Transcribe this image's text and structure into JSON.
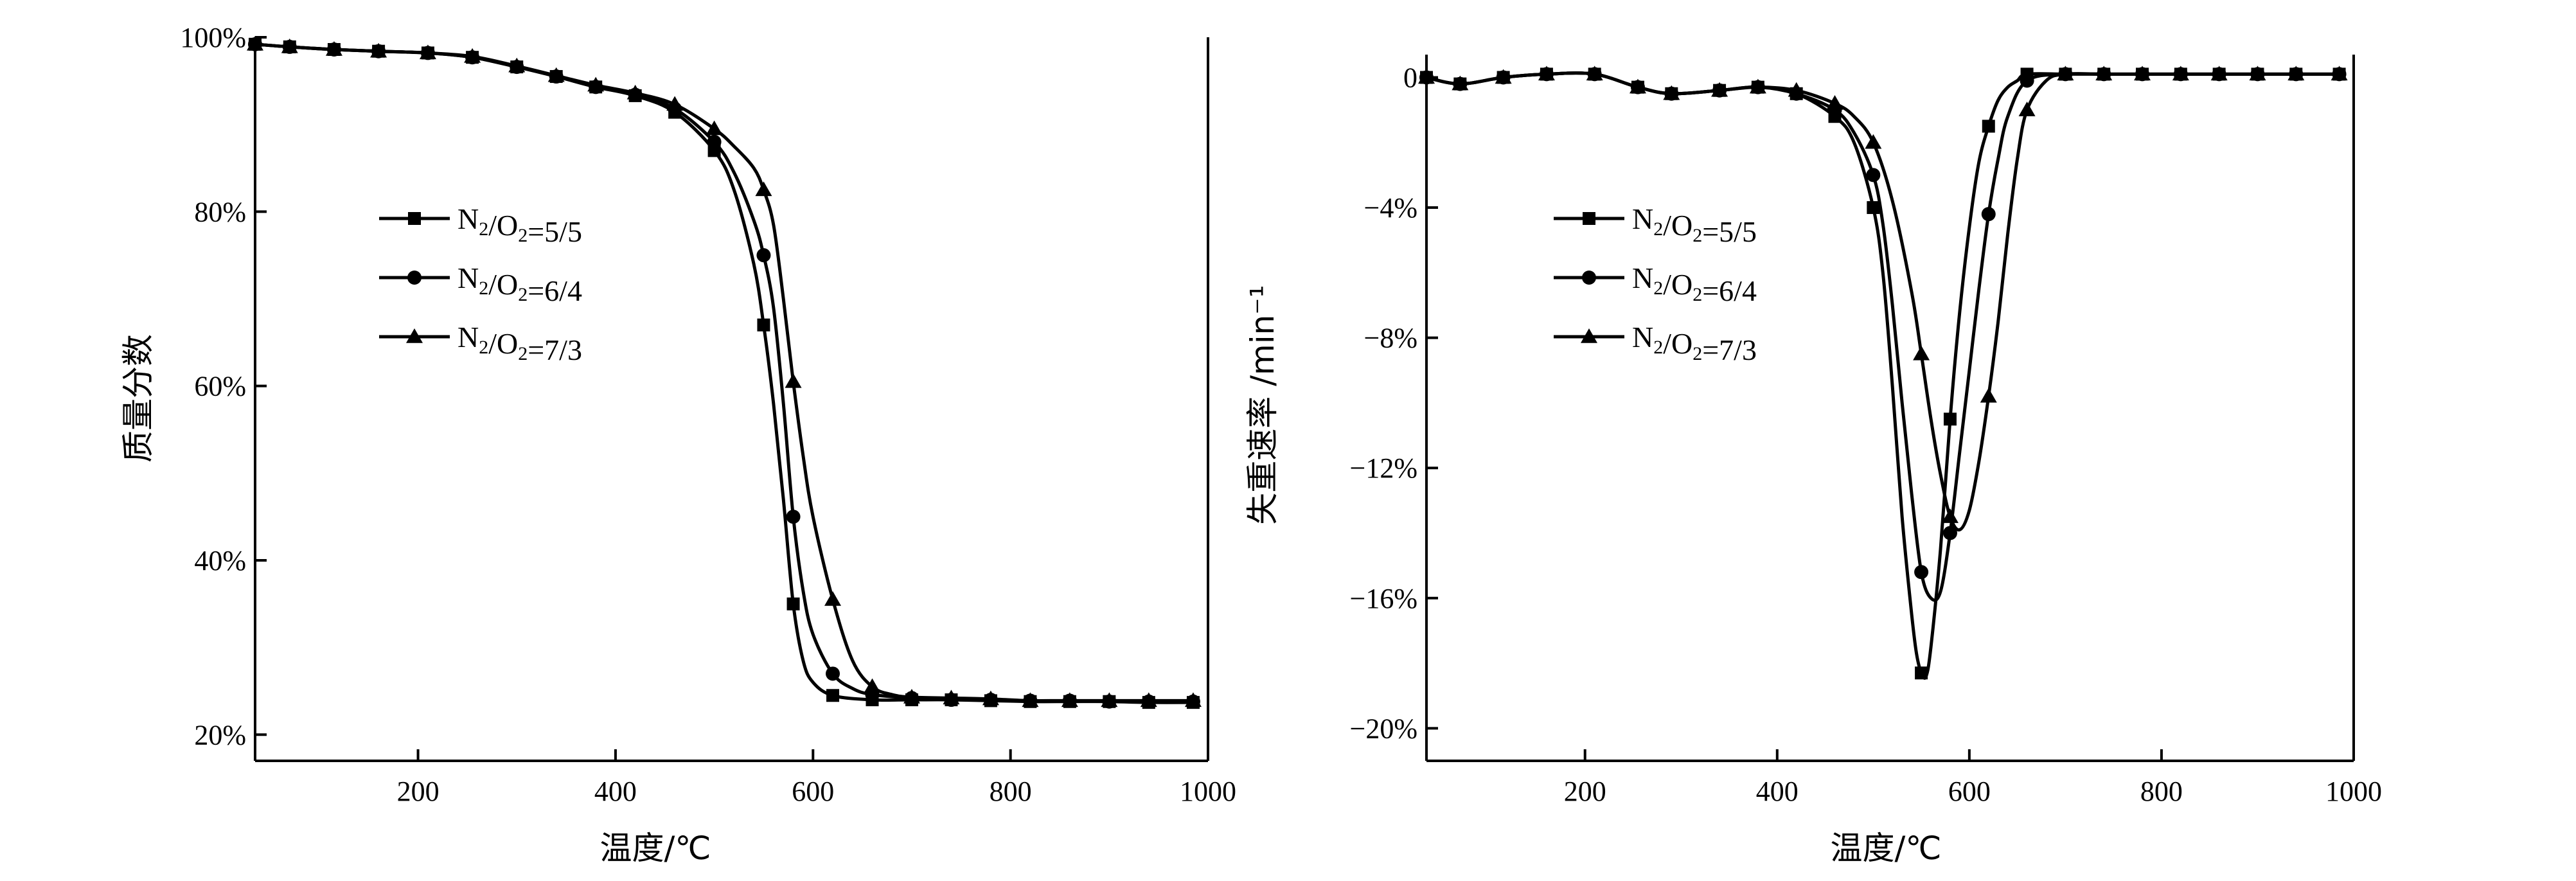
{
  "chart_data": [
    {
      "type": "line",
      "title": "",
      "xlabel": "温度/℃",
      "ylabel": "质量分数",
      "xlim": [
        35,
        1000
      ],
      "ylim": [
        17,
        100
      ],
      "xticks": [
        200,
        400,
        600,
        800,
        1000
      ],
      "xtick_labels": [
        "200",
        "400",
        "600",
        "800",
        "1000"
      ],
      "yticks": [
        20,
        40,
        60,
        80,
        100
      ],
      "ytick_labels": [
        "20%",
        "40%",
        "60%",
        "80%",
        "100%"
      ],
      "legend_position": "center-left",
      "grid": false,
      "series": [
        {
          "name": "N2/O2=5/5",
          "marker": "square",
          "x": [
            35,
            70,
            115,
            160,
            210,
            255,
            300,
            340,
            380,
            420,
            460,
            500,
            520,
            540,
            550,
            560,
            570,
            580,
            590,
            600,
            620,
            660,
            700,
            740,
            780,
            820,
            860,
            900,
            940,
            985
          ],
          "y": [
            99.2,
            98.9,
            98.6,
            98.4,
            98.2,
            97.7,
            96.6,
            95.5,
            94.3,
            93.3,
            91.4,
            87.0,
            82.5,
            74.0,
            67.0,
            58.0,
            47.0,
            35.0,
            28.5,
            26.0,
            24.5,
            24.0,
            24.0,
            24.0,
            23.9,
            23.8,
            23.8,
            23.8,
            23.7,
            23.7
          ],
          "markers_x": [
            35,
            70,
            115,
            160,
            210,
            255,
            300,
            340,
            380,
            420,
            460,
            500,
            550,
            580,
            620,
            660,
            700,
            740,
            780,
            820,
            860,
            900,
            940,
            985
          ]
        },
        {
          "name": "N2/O2=6/4",
          "marker": "circle",
          "x": [
            35,
            70,
            115,
            160,
            210,
            255,
            300,
            340,
            380,
            420,
            460,
            500,
            520,
            540,
            550,
            560,
            570,
            580,
            590,
            600,
            620,
            640,
            660,
            700,
            740,
            780,
            820,
            860,
            900,
            940,
            985
          ],
          "y": [
            99.2,
            98.9,
            98.6,
            98.4,
            98.2,
            97.7,
            96.6,
            95.5,
            94.3,
            93.4,
            91.8,
            88.0,
            84.5,
            79.0,
            75.0,
            69.0,
            58.0,
            45.0,
            36.5,
            31.5,
            27.0,
            25.3,
            24.6,
            24.2,
            24.0,
            24.0,
            23.9,
            23.9,
            23.8,
            23.8,
            23.8
          ],
          "markers_x": [
            35,
            70,
            115,
            160,
            210,
            255,
            300,
            340,
            380,
            420,
            460,
            500,
            550,
            580,
            620,
            660,
            700,
            740,
            780,
            820,
            860,
            900,
            940,
            985
          ]
        },
        {
          "name": "N2/O2=7/3",
          "marker": "triangle",
          "x": [
            35,
            70,
            115,
            160,
            210,
            255,
            300,
            340,
            380,
            420,
            460,
            500,
            520,
            540,
            550,
            560,
            570,
            580,
            590,
            600,
            620,
            640,
            660,
            680,
            700,
            740,
            780,
            820,
            860,
            900,
            940,
            985
          ],
          "y": [
            99.2,
            98.9,
            98.6,
            98.4,
            98.2,
            97.8,
            96.7,
            95.6,
            94.5,
            93.6,
            92.3,
            89.5,
            87.5,
            85.0,
            82.5,
            78.5,
            70.0,
            60.5,
            52.0,
            45.0,
            35.5,
            28.5,
            25.5,
            24.6,
            24.3,
            24.2,
            24.1,
            23.9,
            23.9,
            23.9,
            23.9,
            23.9
          ],
          "markers_x": [
            35,
            70,
            115,
            160,
            210,
            255,
            300,
            340,
            380,
            420,
            460,
            500,
            550,
            580,
            620,
            660,
            700,
            740,
            780,
            820,
            860,
            900,
            940,
            985
          ]
        }
      ]
    },
    {
      "type": "line",
      "title": "",
      "xlabel": "温度/℃",
      "ylabel": "失重速率 /min⁻¹",
      "xlim": [
        35,
        1000
      ],
      "ylim": [
        -21,
        0.7
      ],
      "xticks": [
        200,
        400,
        600,
        800,
        1000
      ],
      "xtick_labels": [
        "200",
        "400",
        "600",
        "800",
        "1000"
      ],
      "yticks": [
        0,
        -4,
        -8,
        -12,
        -16,
        -20
      ],
      "ytick_labels": [
        "0",
        "−4%",
        "−8%",
        "−12%",
        "−16%",
        "−20%"
      ],
      "legend_position": "center-left",
      "grid": false,
      "series": [
        {
          "name": "N2/O2=5/5",
          "marker": "square",
          "x": [
            35,
            70,
            115,
            160,
            210,
            255,
            290,
            340,
            380,
            420,
            460,
            480,
            500,
            510,
            520,
            530,
            540,
            545,
            550,
            555,
            560,
            570,
            580,
            590,
            600,
            610,
            620,
            630,
            640,
            650,
            660,
            700,
            740,
            780,
            820,
            860,
            900,
            940,
            985
          ],
          "y": [
            0.0,
            -0.2,
            0.0,
            0.1,
            0.1,
            -0.3,
            -0.5,
            -0.4,
            -0.3,
            -0.5,
            -1.2,
            -2.0,
            -4.0,
            -6.0,
            -9.5,
            -13.5,
            -16.5,
            -17.7,
            -18.3,
            -18.4,
            -17.5,
            -14.5,
            -10.5,
            -7.2,
            -4.6,
            -2.6,
            -1.5,
            -0.7,
            -0.3,
            -0.1,
            0.1,
            0.1,
            0.1,
            0.1,
            0.1,
            0.1,
            0.1,
            0.1,
            0.1
          ],
          "markers_x": [
            35,
            70,
            115,
            160,
            210,
            255,
            290,
            340,
            380,
            420,
            460,
            500,
            550,
            580,
            620,
            660,
            700,
            740,
            780,
            820,
            860,
            900,
            940,
            985
          ]
        },
        {
          "name": "N2/O2=6/4",
          "marker": "circle",
          "x": [
            35,
            70,
            115,
            160,
            210,
            255,
            290,
            340,
            380,
            420,
            460,
            480,
            500,
            510,
            520,
            530,
            540,
            550,
            560,
            570,
            580,
            590,
            600,
            610,
            620,
            630,
            640,
            660,
            700,
            740,
            780,
            820,
            860,
            900,
            940,
            985
          ],
          "y": [
            0.0,
            -0.2,
            0.0,
            0.1,
            0.1,
            -0.3,
            -0.5,
            -0.4,
            -0.3,
            -0.5,
            -1.0,
            -1.7,
            -3.0,
            -4.5,
            -7.0,
            -10.0,
            -12.8,
            -15.2,
            -16.0,
            -15.8,
            -14.0,
            -11.5,
            -9.0,
            -6.5,
            -4.2,
            -2.5,
            -1.2,
            -0.1,
            0.1,
            0.1,
            0.1,
            0.1,
            0.1,
            0.1,
            0.1,
            0.1
          ],
          "markers_x": [
            35,
            70,
            115,
            160,
            210,
            255,
            290,
            340,
            380,
            420,
            460,
            500,
            550,
            580,
            620,
            660,
            700,
            740,
            780,
            820,
            860,
            900,
            940,
            985
          ]
        },
        {
          "name": "N2/O2=7/3",
          "marker": "triangle",
          "x": [
            35,
            70,
            115,
            160,
            210,
            255,
            290,
            340,
            380,
            420,
            460,
            480,
            500,
            520,
            540,
            550,
            560,
            570,
            580,
            590,
            600,
            610,
            620,
            630,
            640,
            650,
            660,
            680,
            700,
            740,
            780,
            820,
            860,
            900,
            940,
            985
          ],
          "y": [
            0.0,
            -0.2,
            0.0,
            0.1,
            0.1,
            -0.3,
            -0.5,
            -0.4,
            -0.3,
            -0.4,
            -0.8,
            -1.2,
            -2.0,
            -3.8,
            -6.6,
            -8.5,
            -10.5,
            -12.2,
            -13.5,
            -13.9,
            -13.3,
            -11.8,
            -9.8,
            -7.5,
            -4.8,
            -2.5,
            -1.0,
            -0.1,
            0.1,
            0.1,
            0.1,
            0.1,
            0.1,
            0.1,
            0.1,
            0.1
          ],
          "markers_x": [
            35,
            70,
            115,
            160,
            210,
            255,
            290,
            340,
            380,
            420,
            460,
            500,
            550,
            580,
            620,
            660,
            700,
            740,
            780,
            820,
            860,
            900,
            940,
            985
          ]
        }
      ]
    }
  ]
}
